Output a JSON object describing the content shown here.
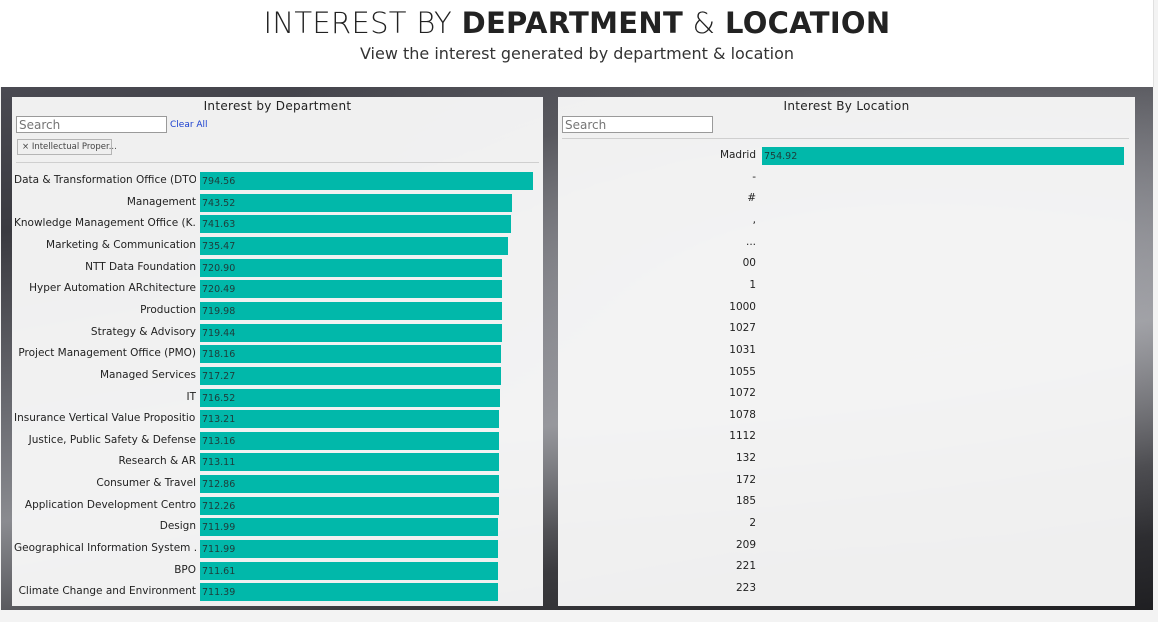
{
  "header": {
    "title_part1": "INTEREST BY ",
    "title_part2": "DEPARTMENT",
    "title_part3": " & ",
    "title_part4": "LOCATION",
    "subtitle": "View the interest generated by department & location"
  },
  "dept_panel": {
    "title": "Interest by Department",
    "search_placeholder": "Search",
    "clear_label": "Clear All",
    "filter_chip": "Intellectual Proper...",
    "chip_close": "×",
    "axis_max": 794.56,
    "rows": [
      {
        "label": "Data & Transformation Office (DTO)",
        "value": 794.56,
        "value_label": "794.56"
      },
      {
        "label": "Management",
        "value": 743.52,
        "value_label": "743.52"
      },
      {
        "label": "Knowledge Management Office (K...",
        "value": 741.63,
        "value_label": "741.63"
      },
      {
        "label": "Marketing & Communication",
        "value": 735.47,
        "value_label": "735.47"
      },
      {
        "label": "NTT Data Foundation",
        "value": 720.9,
        "value_label": "720.90"
      },
      {
        "label": "Hyper Automation ARchitecture",
        "value": 720.49,
        "value_label": "720.49"
      },
      {
        "label": "Production",
        "value": 719.98,
        "value_label": "719.98"
      },
      {
        "label": "Strategy & Advisory",
        "value": 719.44,
        "value_label": "719.44"
      },
      {
        "label": "Project Management Office (PMO)",
        "value": 718.16,
        "value_label": "718.16"
      },
      {
        "label": "Managed Services",
        "value": 717.27,
        "value_label": "717.27"
      },
      {
        "label": "IT",
        "value": 716.52,
        "value_label": "716.52"
      },
      {
        "label": "Insurance Vertical Value Propositio...",
        "value": 713.21,
        "value_label": "713.21"
      },
      {
        "label": "Justice, Public Safety & Defense",
        "value": 713.16,
        "value_label": "713.16"
      },
      {
        "label": "Research & AR",
        "value": 713.11,
        "value_label": "713.11"
      },
      {
        "label": "Consumer & Travel",
        "value": 712.86,
        "value_label": "712.86"
      },
      {
        "label": "Application Development Centro",
        "value": 712.26,
        "value_label": "712.26"
      },
      {
        "label": "Design",
        "value": 711.99,
        "value_label": "711.99"
      },
      {
        "label": "Geographical Information System ...",
        "value": 711.99,
        "value_label": "711.99"
      },
      {
        "label": "BPO",
        "value": 711.61,
        "value_label": "711.61"
      },
      {
        "label": "Climate Change and Environment",
        "value": 711.39,
        "value_label": "711.39"
      }
    ]
  },
  "loc_panel": {
    "title": "Interest By Location",
    "search_placeholder": "Search",
    "axis_max": 754.92,
    "rows": [
      {
        "label": "Madrid",
        "value": 754.92,
        "value_label": "754.92"
      },
      {
        "label": "-",
        "value": 0,
        "value_label": ""
      },
      {
        "label": "#",
        "value": 0,
        "value_label": ""
      },
      {
        "label": ",",
        "value": 0,
        "value_label": ""
      },
      {
        "label": "...",
        "value": 0,
        "value_label": ""
      },
      {
        "label": "00",
        "value": 0,
        "value_label": ""
      },
      {
        "label": "1",
        "value": 0,
        "value_label": ""
      },
      {
        "label": "1000",
        "value": 0,
        "value_label": ""
      },
      {
        "label": "1027",
        "value": 0,
        "value_label": ""
      },
      {
        "label": "1031",
        "value": 0,
        "value_label": ""
      },
      {
        "label": "1055",
        "value": 0,
        "value_label": ""
      },
      {
        "label": "1072",
        "value": 0,
        "value_label": ""
      },
      {
        "label": "1078",
        "value": 0,
        "value_label": ""
      },
      {
        "label": "1112",
        "value": 0,
        "value_label": ""
      },
      {
        "label": "132",
        "value": 0,
        "value_label": ""
      },
      {
        "label": "172",
        "value": 0,
        "value_label": ""
      },
      {
        "label": "185",
        "value": 0,
        "value_label": ""
      },
      {
        "label": "2",
        "value": 0,
        "value_label": ""
      },
      {
        "label": "209",
        "value": 0,
        "value_label": ""
      },
      {
        "label": "221",
        "value": 0,
        "value_label": ""
      },
      {
        "label": "223",
        "value": 0,
        "value_label": ""
      }
    ]
  },
  "colors": {
    "bar": "#01b8aa",
    "value_text": "#1e3c3a",
    "link": "#1a3fcf"
  }
}
